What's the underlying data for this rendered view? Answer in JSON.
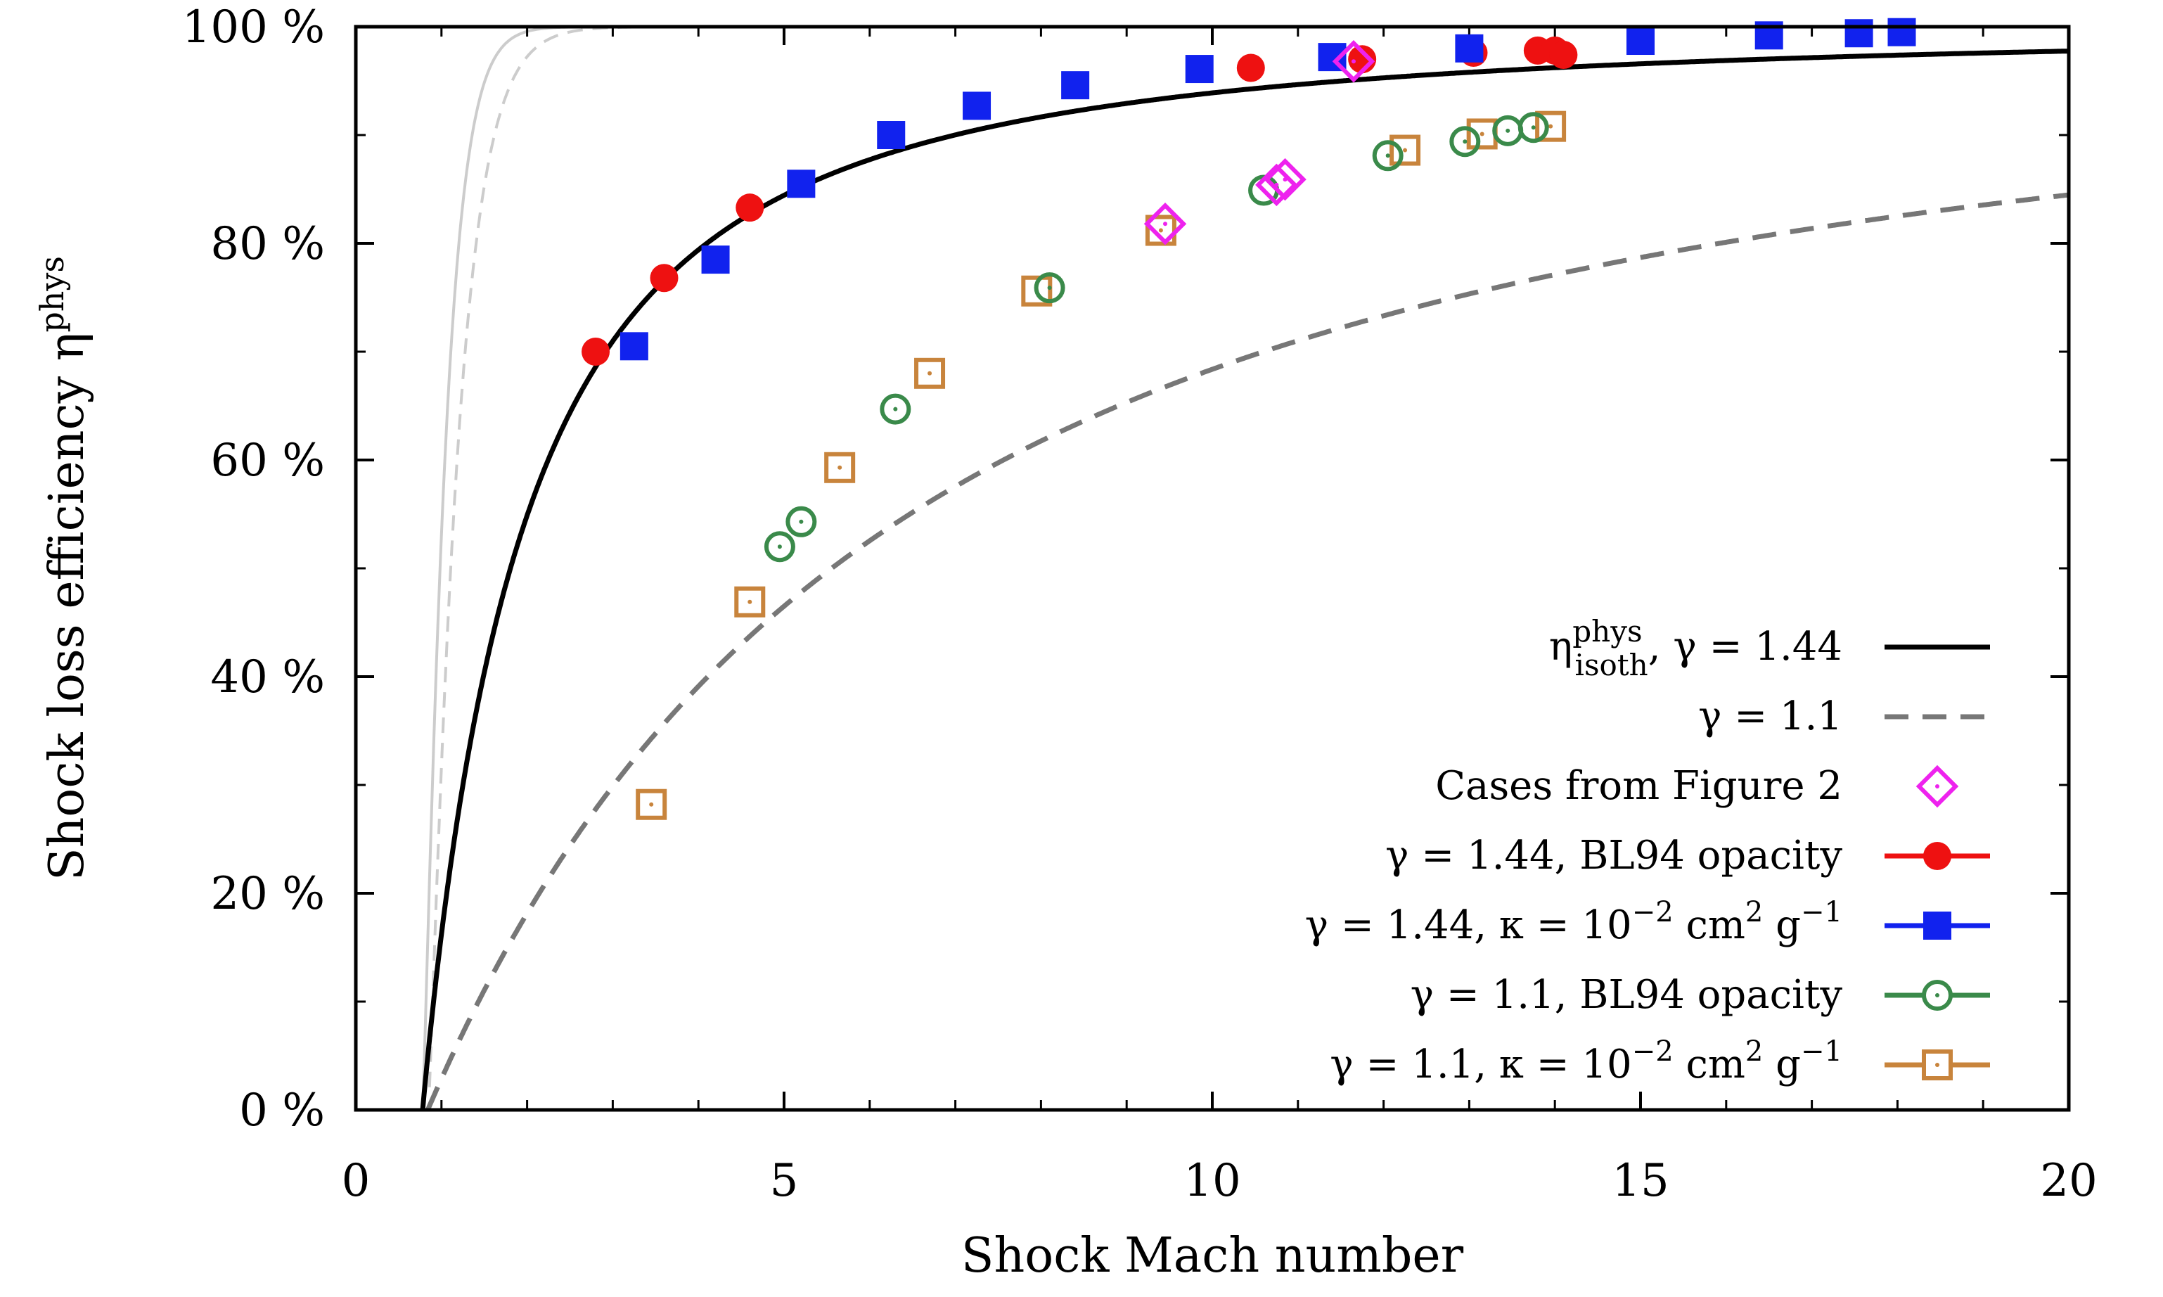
{
  "chart_data": {
    "type": "scatter",
    "xlabel": "Shock Mach number",
    "ylabel": "Shock loss efficiency η",
    "ylabel_sup": "phys",
    "xlim": [
      0,
      20
    ],
    "ylim": [
      0,
      100
    ],
    "x_ticks": [
      "0",
      "5",
      "10",
      "15",
      "20"
    ],
    "y_ticks": [
      "0 %",
      "20 %",
      "40 %",
      "60 %",
      "80 %",
      "100 %"
    ],
    "grid": false,
    "legend_position": "bottom-right",
    "colors": {
      "red": "#ee1111",
      "blue": "#1122ee",
      "green": "#3a8a4a",
      "orange": "#c8843c",
      "magenta": "#ee22ee",
      "dashed_gray": "#777777",
      "light_gray": "#cccccc"
    },
    "curves": [
      {
        "name": "η_isoth^phys, γ = 1.44",
        "gamma": 1.44,
        "style": "solid-black"
      },
      {
        "name": "γ = 1.1",
        "gamma": 1.1,
        "style": "dashed-gray"
      },
      {
        "name": "",
        "gamma": 1.44,
        "style": "solid-lightgray",
        "note": "unlabeled"
      },
      {
        "name": "",
        "gamma": 1.1,
        "style": "dashed-lightgray",
        "note": "unlabeled"
      }
    ],
    "series": [
      {
        "name": "Cases from Figure 2",
        "marker": "open-diamond",
        "points": [
          [
            9.45,
            81.8
          ],
          [
            10.75,
            85.4
          ],
          [
            10.85,
            85.9
          ],
          [
            11.65,
            96.8
          ]
        ]
      },
      {
        "name": "γ = 1.44, BL94 opacity",
        "marker": "filled-circle",
        "points": [
          [
            2.8,
            70.0
          ],
          [
            3.6,
            76.8
          ],
          [
            4.6,
            83.3
          ],
          [
            10.45,
            96.2
          ],
          [
            11.75,
            97.0
          ],
          [
            13.05,
            97.6
          ],
          [
            13.8,
            97.8
          ],
          [
            14.0,
            97.8
          ],
          [
            14.1,
            97.4
          ]
        ]
      },
      {
        "name": "γ = 1.44, κ = 10⁻² cm² g⁻¹",
        "marker": "filled-square",
        "points": [
          [
            3.25,
            70.5
          ],
          [
            4.2,
            78.5
          ],
          [
            5.2,
            85.5
          ],
          [
            6.25,
            90.0
          ],
          [
            7.25,
            92.7
          ],
          [
            8.4,
            94.6
          ],
          [
            9.85,
            96.1
          ],
          [
            11.4,
            97.2
          ],
          [
            13.0,
            98.0
          ],
          [
            15.0,
            98.7
          ],
          [
            16.5,
            99.2
          ],
          [
            17.55,
            99.4
          ],
          [
            18.05,
            99.5
          ]
        ]
      },
      {
        "name": "γ = 1.1, BL94 opacity",
        "marker": "open-circle",
        "points": [
          [
            8.1,
            75.9
          ],
          [
            6.3,
            64.7
          ],
          [
            5.2,
            54.3
          ],
          [
            4.95,
            52.0
          ],
          [
            10.6,
            84.9
          ],
          [
            12.05,
            88.1
          ],
          [
            12.95,
            89.4
          ],
          [
            13.45,
            90.4
          ],
          [
            13.75,
            90.7
          ]
        ]
      },
      {
        "name": "γ = 1.1, κ = 10⁻² cm² g⁻¹",
        "marker": "open-square",
        "points": [
          [
            3.45,
            28.2
          ],
          [
            4.6,
            46.9
          ],
          [
            5.65,
            59.3
          ],
          [
            6.7,
            68.0
          ],
          [
            7.95,
            75.6
          ],
          [
            9.4,
            81.2
          ],
          [
            12.25,
            88.6
          ],
          [
            13.15,
            90.1
          ],
          [
            13.95,
            90.8
          ]
        ]
      }
    ],
    "legend": [
      {
        "text": "η",
        "sub": "isoth",
        "sup": "phys",
        "tail": ", γ = 1.44",
        "key": "solid-black"
      },
      {
        "text": "γ = 1.1",
        "key": "dashed-gray"
      },
      {
        "text": "Cases from Figure 2",
        "key": "open-diamond"
      },
      {
        "text": "γ = 1.44, BL94 opacity",
        "key": "filled-circle"
      },
      {
        "text": "γ = 1.44, κ = 10",
        "sup": "−2",
        "tail": " cm",
        "sup2": "2",
        "tail2": " g",
        "sup3": "−1",
        "key": "filled-square"
      },
      {
        "text": "γ = 1.1, BL94 opacity",
        "key": "open-circle"
      },
      {
        "text": "γ = 1.1, κ = 10",
        "sup": "−2",
        "tail": " cm",
        "sup2": "2",
        "tail2": " g",
        "sup3": "−1",
        "key": "open-square"
      }
    ]
  }
}
